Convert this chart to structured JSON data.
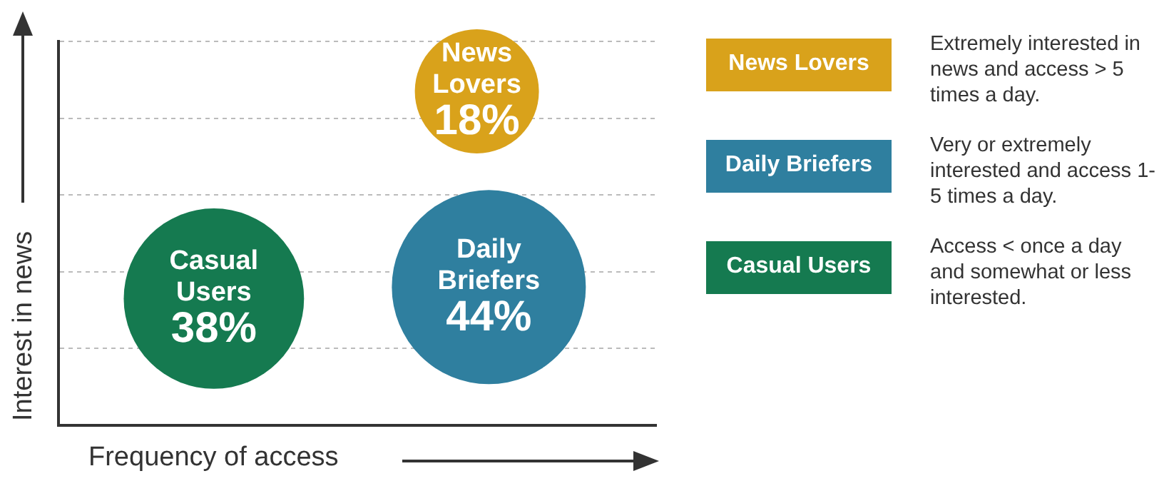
{
  "chart_data": {
    "type": "other",
    "xlabel": "Frequency of access",
    "ylabel": "Interest in news",
    "categories": [
      "News Lovers",
      "Daily Briefers",
      "Casual Users"
    ],
    "values": [
      18,
      44,
      38
    ],
    "value_labels": [
      "18%",
      "44%",
      "38%"
    ],
    "colors": [
      "#d9a21b",
      "#2f7f9f",
      "#157a50"
    ],
    "annotations": [
      "Extremely interested in news and access > 5 times a day.",
      "Very or extremely interested and access 1-5 times a day.",
      "Access < once a day and somewhat or less interested."
    ]
  }
}
